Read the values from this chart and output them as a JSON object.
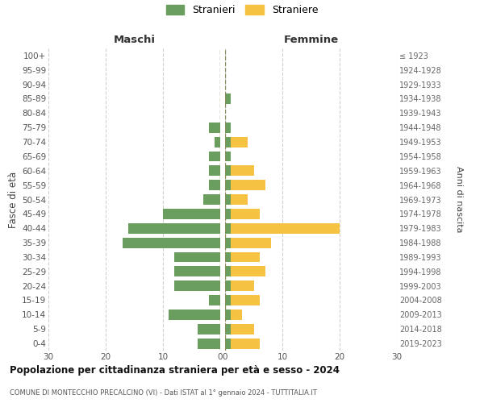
{
  "age_groups": [
    "100+",
    "95-99",
    "90-94",
    "85-89",
    "80-84",
    "75-79",
    "70-74",
    "65-69",
    "60-64",
    "55-59",
    "50-54",
    "45-49",
    "40-44",
    "35-39",
    "30-34",
    "25-29",
    "20-24",
    "15-19",
    "10-14",
    "5-9",
    "0-4"
  ],
  "birth_years": [
    "≤ 1923",
    "1924-1928",
    "1929-1933",
    "1934-1938",
    "1939-1943",
    "1944-1948",
    "1949-1953",
    "1954-1958",
    "1959-1963",
    "1964-1968",
    "1969-1973",
    "1974-1978",
    "1979-1983",
    "1984-1988",
    "1989-1993",
    "1994-1998",
    "1999-2003",
    "2004-2008",
    "2009-2013",
    "2014-2018",
    "2019-2023"
  ],
  "maschi": [
    0,
    0,
    0,
    0,
    0,
    2,
    1,
    2,
    2,
    2,
    3,
    10,
    16,
    17,
    8,
    8,
    8,
    2,
    9,
    4,
    4
  ],
  "femmine": [
    0,
    0,
    0,
    1,
    0,
    1,
    4,
    1,
    5,
    7,
    4,
    6,
    20,
    8,
    6,
    7,
    5,
    6,
    3,
    5,
    6
  ],
  "maschi_color": "#6a9e5e",
  "femmine_color": "#f5c242",
  "background_color": "#ffffff",
  "grid_color": "#d0d0d0",
  "center_line_color": "#8b8b5a",
  "title": "Popolazione per cittadinanza straniera per età e sesso - 2024",
  "subtitle": "COMUNE DI MONTECCHIO PRECALCINO (VI) - Dati ISTAT al 1° gennaio 2024 - TUTTITALIA.IT",
  "ylabel_left": "Fasce di età",
  "ylabel_right": "Anni di nascita",
  "xlabel_maschi": "Maschi",
  "xlabel_femmine": "Femmine",
  "legend_maschi": "Stranieri",
  "legend_femmine": "Straniere",
  "xlim": 30,
  "bar_height": 0.72
}
